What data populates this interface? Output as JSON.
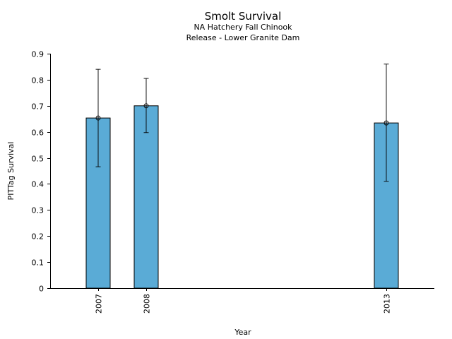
{
  "chart_data": {
    "type": "bar",
    "title": "Smolt Survival",
    "subtitle_lines": [
      "NA Hatchery Fall Chinook",
      "Release - Lower Granite Dam"
    ],
    "xlabel": "Year",
    "ylabel": "PITTag Survival",
    "xlim": [
      2006,
      2014
    ],
    "ylim": [
      0,
      0.9
    ],
    "y_ticks": [
      0,
      0.1,
      0.2,
      0.3,
      0.4,
      0.5,
      0.6,
      0.7,
      0.8,
      0.9
    ],
    "y_tick_labels": [
      "0",
      "0.1",
      "0.2",
      "0.3",
      "0.4",
      "0.5",
      "0.6",
      "0.7",
      "0.8",
      "0.9"
    ],
    "categories": [
      "2007",
      "2008",
      "2013"
    ],
    "x": [
      2007,
      2008,
      2013
    ],
    "values": [
      0.653,
      0.7,
      0.634
    ],
    "error_low": [
      0.466,
      0.597,
      0.41
    ],
    "error_high": [
      0.84,
      0.805,
      0.86
    ],
    "bar_width_years": 0.5,
    "bar_color": "#5aabd6",
    "grid": false
  }
}
